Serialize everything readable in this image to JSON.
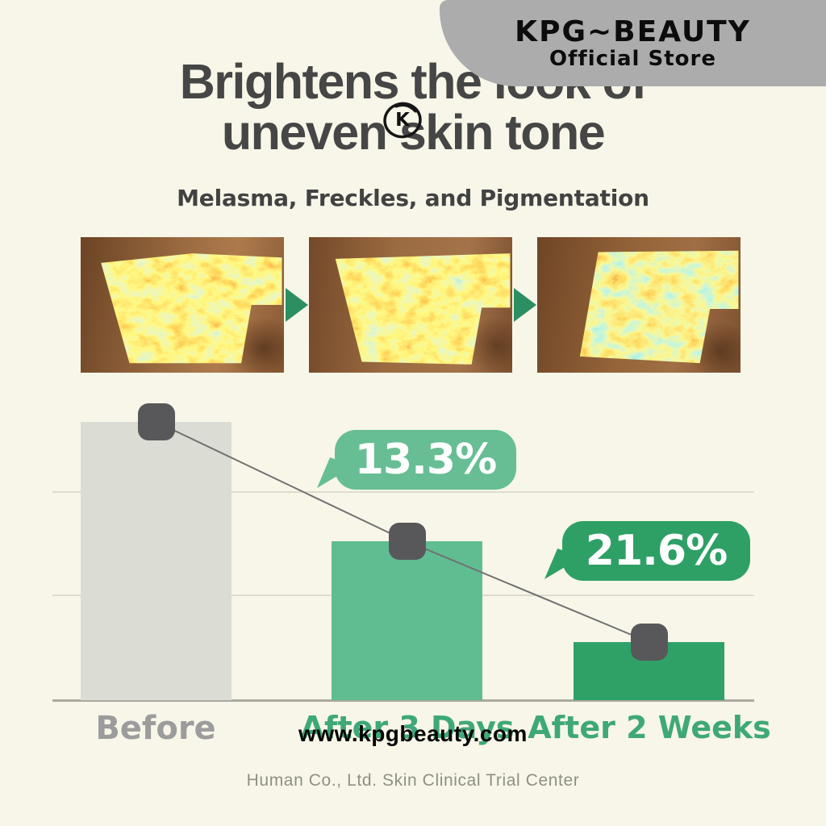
{
  "banner": {
    "brand": "KPG~BEAUTY",
    "store_label": "Official Store"
  },
  "title": {
    "line1": "Brightens the look of",
    "line2": "uneven skin tone"
  },
  "trademark_logo": {
    "letter": "K",
    "icon": "circled-k-mark-icon"
  },
  "subtitle": "Melasma, Freckles, and Pigmentation",
  "photos": {
    "count": 3,
    "description": "melanin heatmap photos of cheek skin shown before and after use, progressively clearer",
    "arrow_icon": "green-right-triangle-arrow"
  },
  "watermark": "www.kpgbeauty.com",
  "footer": "Human Co., Ltd. Skin Clinical Trial Center",
  "colors": {
    "background": "#f8f6e8",
    "banner": "#acacac",
    "title_text": "#464646",
    "bar_before": "#dbddd5",
    "bar_after_3_days": "#60bd92",
    "bar_after_2_weeks": "#2fa167",
    "bubble_13_3": "#67be94",
    "bubble_21_6": "#2ea066",
    "label_gray": "#9c9c9c",
    "label_green": "#3fa878",
    "marker_square": "#58585a",
    "photo_arrow": "#2c8f62"
  },
  "chart_data": {
    "type": "bar",
    "title": "Brightens the look of uneven skin tone",
    "subtitle": "Melasma, Freckles, and Pigmentation",
    "categories": [
      "Before",
      "After 3 Days",
      "After 2 Weeks"
    ],
    "series": [
      {
        "name": "pigmentation level (relative bar height, estimated)",
        "values": [
          1.0,
          0.57,
          0.21
        ]
      }
    ],
    "annotations": [
      {
        "label": "13.3%",
        "applies_to": "After 3 Days",
        "style": "speech-bubble"
      },
      {
        "label": "21.6%",
        "applies_to": "After 2 Weeks",
        "style": "speech-bubble"
      }
    ],
    "trend_markers": "dark rounded square at each bar top, connected by a descending gray line",
    "gridlines": {
      "horizontal_count": 2,
      "baseline": true
    },
    "legend": false,
    "xlabel": "",
    "ylabel": "",
    "source": "Human Co., Ltd. Skin Clinical Trial Center"
  }
}
